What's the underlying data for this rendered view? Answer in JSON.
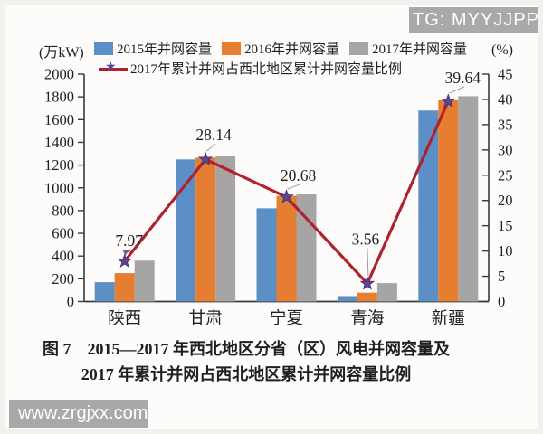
{
  "page": {
    "top_watermark": "TG: MYYJJPP",
    "bottom_watermark": "www.zrgjxx.com"
  },
  "caption": {
    "line1": "图 7　2015—2017 年西北地区分省（区）风电并网容量及",
    "line2": "2017 年累计并网占西北地区累计并网容量比例"
  },
  "chart_data": {
    "type": "bar",
    "subtype": "grouped-bars-with-line-overlay",
    "categories": [
      "陕西",
      "甘肃",
      "宁夏",
      "青海",
      "新疆"
    ],
    "bar_series": [
      {
        "name": "2015年并网容量",
        "color": "#5b8fc6",
        "values": [
          170,
          1250,
          820,
          48,
          1680
        ]
      },
      {
        "name": "2016年并网容量",
        "color": "#e67e31",
        "values": [
          250,
          1265,
          930,
          78,
          1770
        ]
      },
      {
        "name": "2017年并网容量",
        "color": "#a6a5a3",
        "values": [
          360,
          1282,
          942,
          162,
          1806
        ]
      }
    ],
    "line_series": {
      "name": "2017年累计并网占西北地区累计并网容量比例",
      "color": "#b02031",
      "marker": "star",
      "marker_color": "#5a4694",
      "axis": "right",
      "values": [
        7.97,
        28.14,
        20.68,
        3.56,
        39.64
      ]
    },
    "left_axis": {
      "label": "(万kW)",
      "min": 0,
      "max": 2000,
      "step": 200
    },
    "right_axis": {
      "label": "(%)",
      "min": 0,
      "max": 45,
      "step": 5
    },
    "legend_position": "top",
    "grid": false
  }
}
